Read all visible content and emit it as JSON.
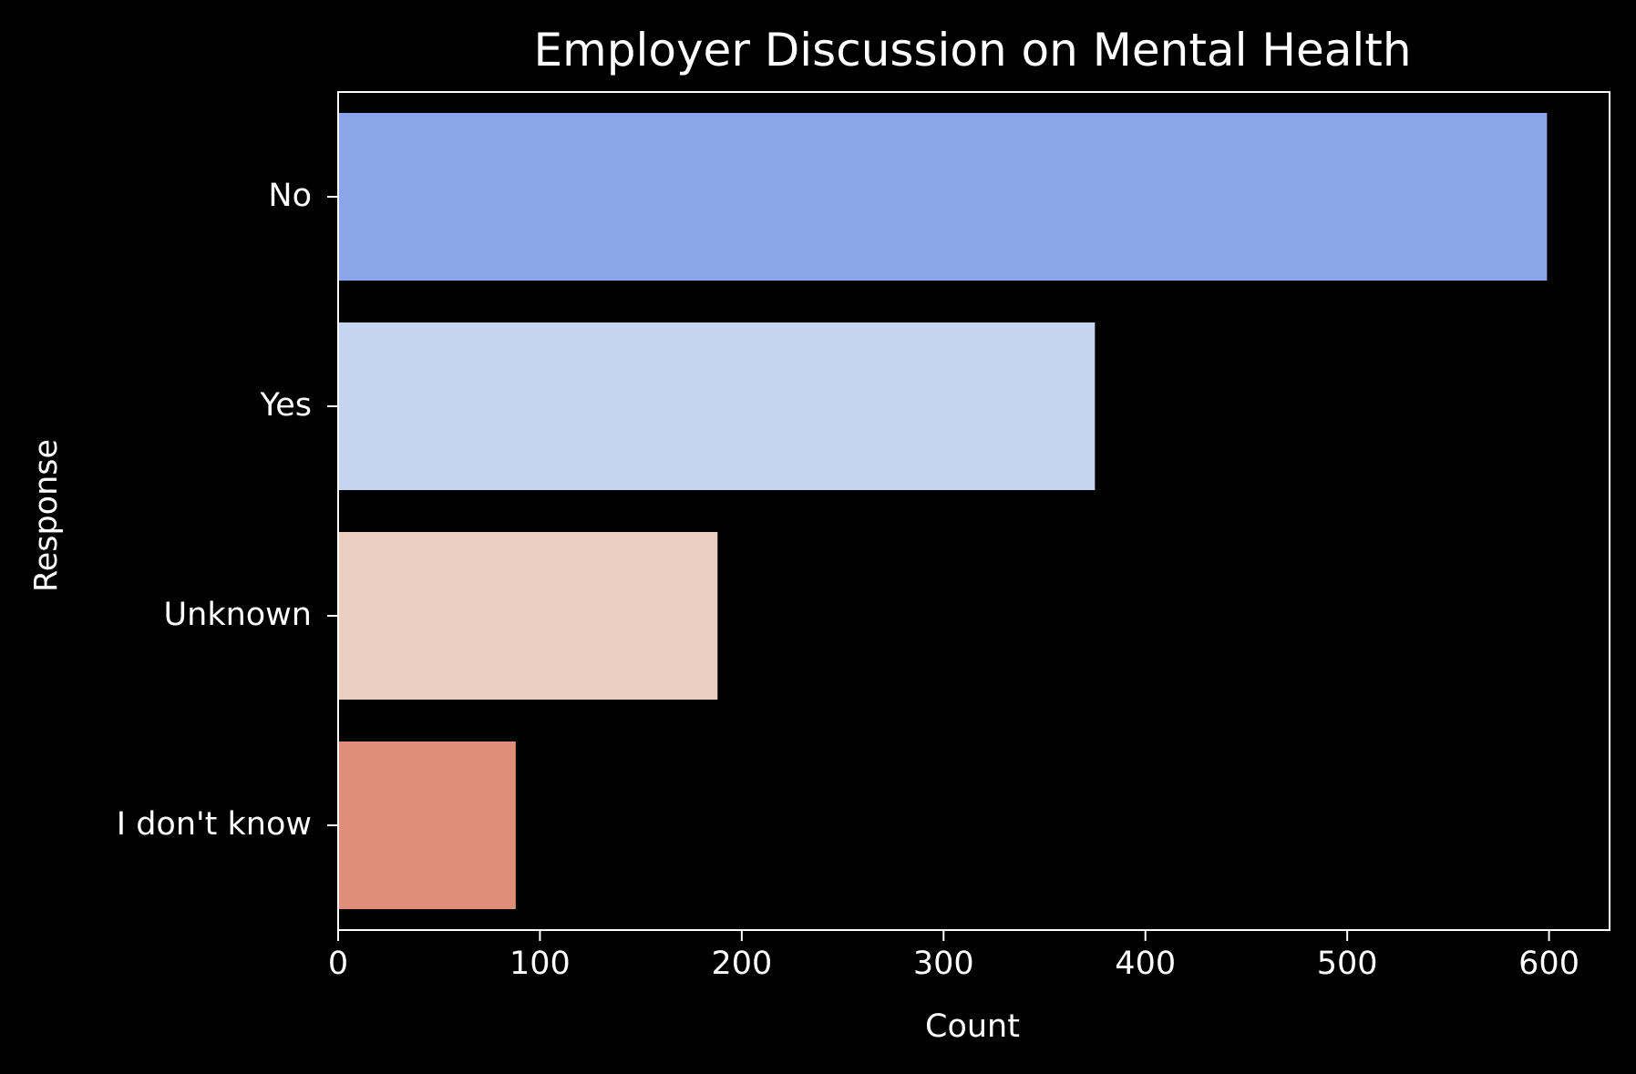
{
  "chart_data": {
    "type": "bar",
    "orientation": "horizontal",
    "title": "Employer Discussion on Mental Health",
    "xlabel": "Count",
    "ylabel": "Response",
    "categories": [
      "No",
      "Yes",
      "Unknown",
      "I don't know"
    ],
    "values": [
      599,
      375,
      188,
      88
    ],
    "colors": [
      "#8aa6e8",
      "#c5d5f1",
      "#eacfc1",
      "#de8e79"
    ],
    "xlim": [
      0,
      630
    ],
    "xticks": [
      0,
      100,
      200,
      300,
      400,
      500,
      600
    ],
    "background": "#000000",
    "foreground": "#ffffff",
    "grid": false
  }
}
